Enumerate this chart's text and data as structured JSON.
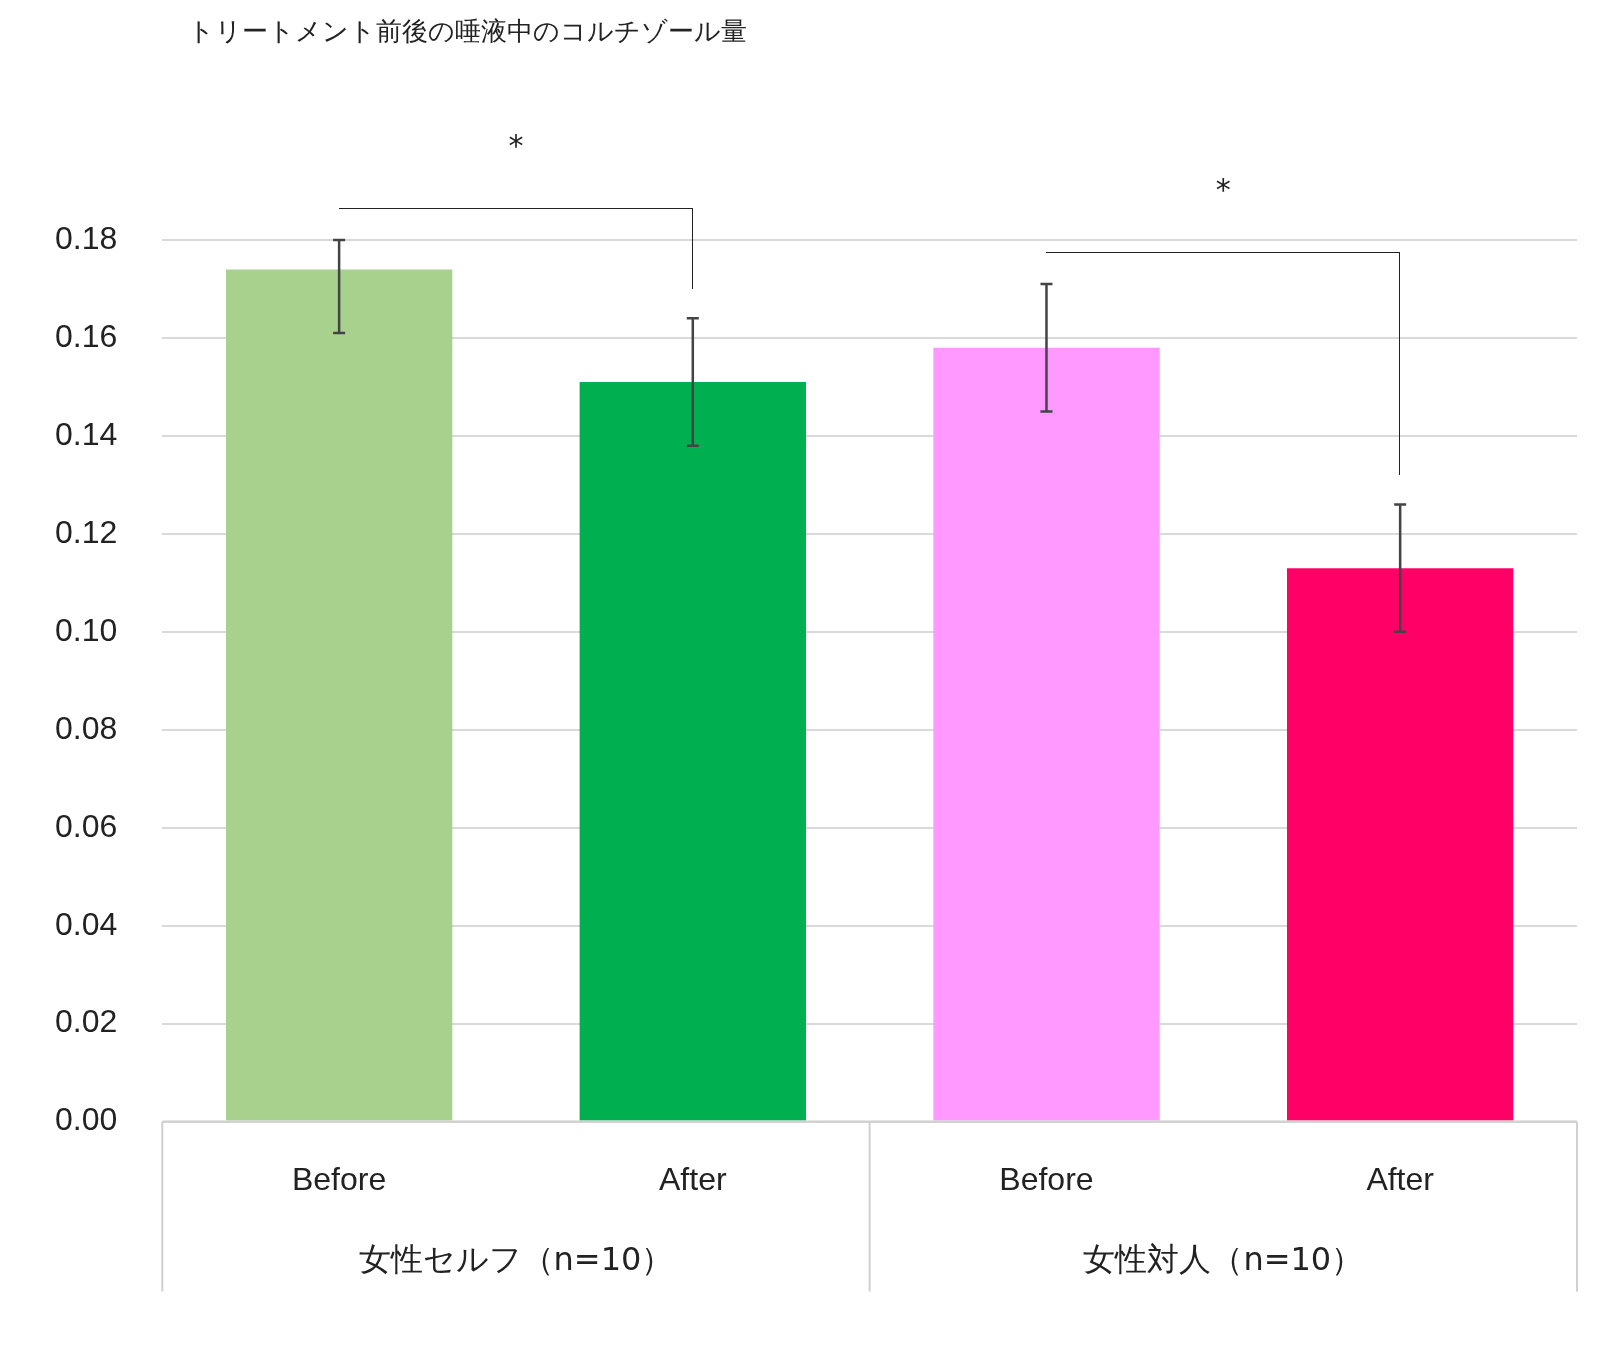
{
  "chart_data": {
    "type": "bar",
    "title": "トリートメント前後の唾液中のコルチゾール量",
    "categories": [
      "Before",
      "After",
      "Before",
      "After"
    ],
    "values": [
      0.174,
      0.151,
      0.158,
      0.113
    ],
    "colors": [
      "#a9d18e",
      "#00b050",
      "#ff99ff",
      "#ff0066"
    ],
    "errors": [
      [
        0.161,
        0.18
      ],
      [
        0.138,
        0.164
      ],
      [
        0.145,
        0.171
      ],
      [
        0.1,
        0.126
      ]
    ],
    "ylim": [
      0,
      0.18
    ],
    "yticks": [
      {
        "value": 0,
        "label": "0.00"
      },
      {
        "value": 0.02,
        "label": "0.02"
      },
      {
        "value": 0.04,
        "label": "0.04"
      },
      {
        "value": 0.06,
        "label": "0.06"
      },
      {
        "value": 0.08,
        "label": "0.08"
      },
      {
        "value": 0.1,
        "label": "0.10"
      },
      {
        "value": 0.12,
        "label": "0.12"
      },
      {
        "value": 0.14,
        "label": "0.14"
      },
      {
        "value": 0.16,
        "label": "0.16"
      },
      {
        "value": 0.18,
        "label": "0.18"
      }
    ],
    "grid": "y",
    "legend": false,
    "annotations": [
      "女性セルフ（n=10）",
      "女性対人（n=10）",
      "*",
      "*"
    ]
  }
}
